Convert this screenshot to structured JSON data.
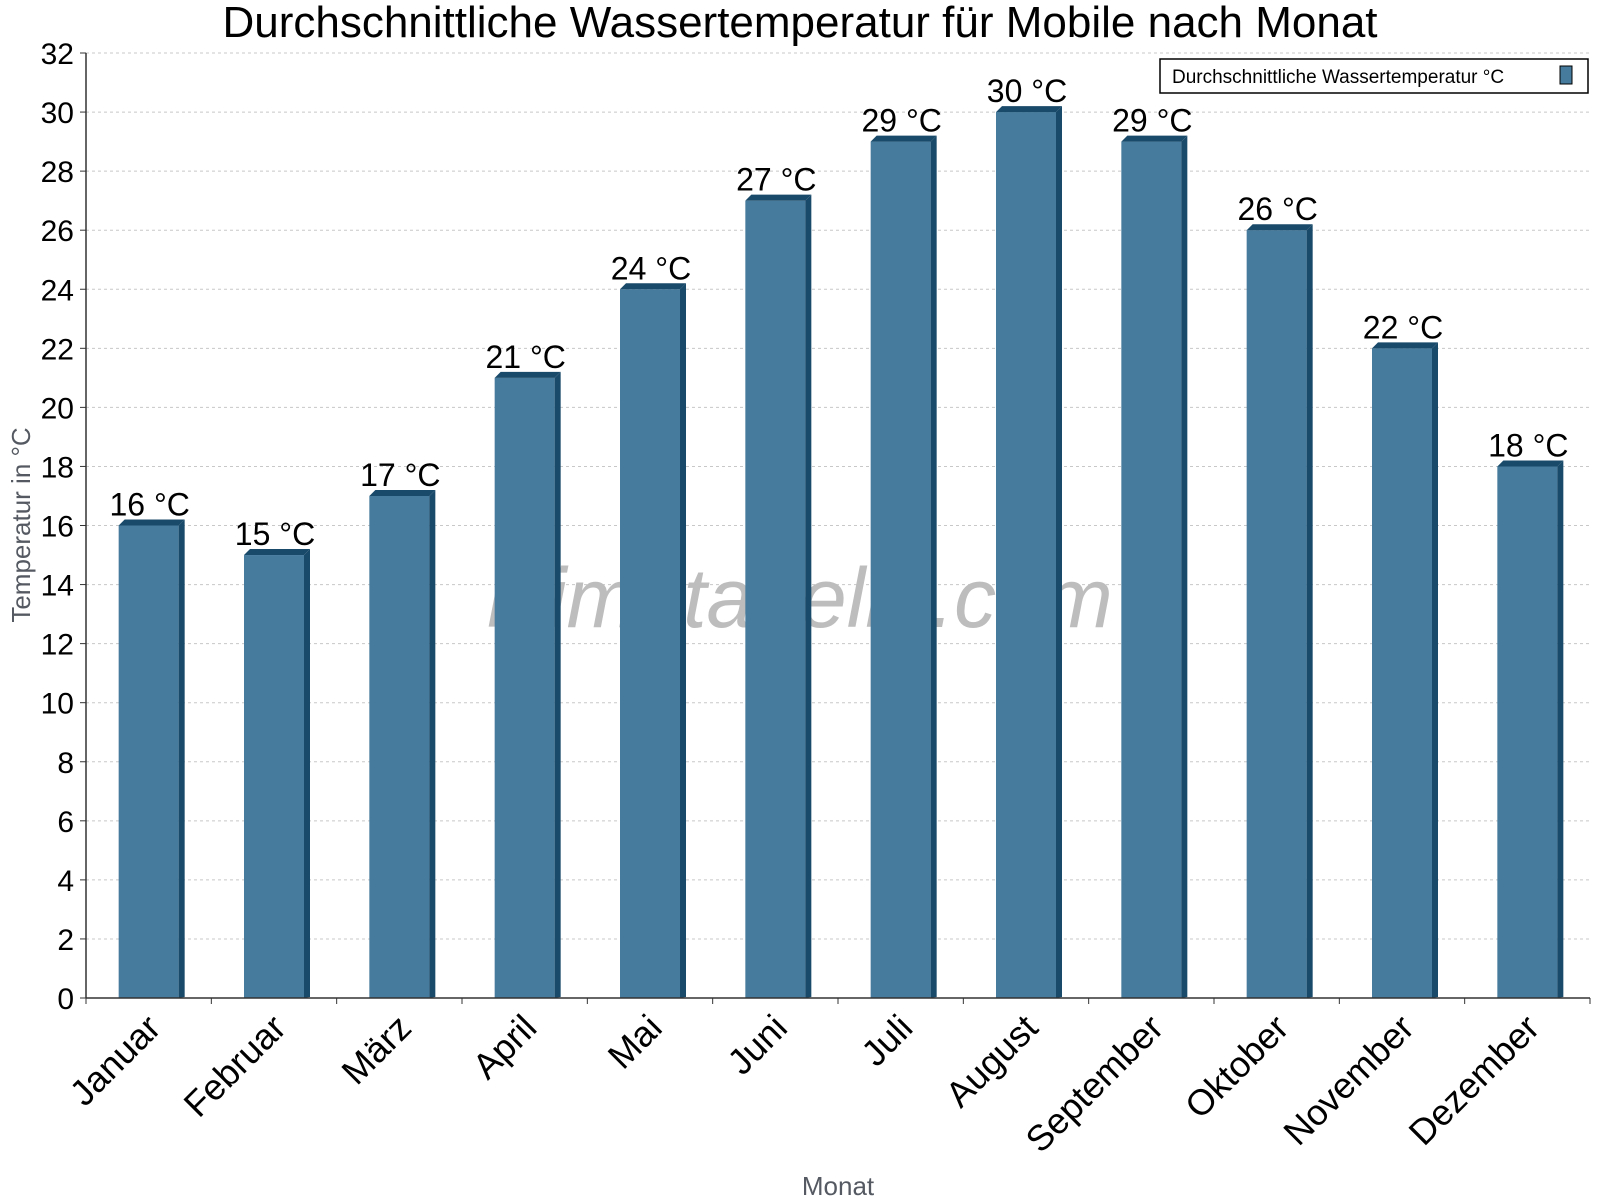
{
  "colors": {
    "bar_face": "#467b9d",
    "bar_side": "#1a4a6a",
    "grid": "#c8c8c8",
    "axis": "#333333"
  },
  "watermark": "klimatabelle.com",
  "chart_data": {
    "type": "bar",
    "title": "Durchschnittliche Wassertemperatur für Mobile nach Monat",
    "xlabel": "Monat",
    "ylabel": "Temperatur in °C",
    "ylim": [
      0,
      32
    ],
    "yticks": [
      0,
      2,
      4,
      6,
      8,
      10,
      12,
      14,
      16,
      18,
      20,
      22,
      24,
      26,
      28,
      30,
      32
    ],
    "grid": true,
    "legend_position": "top-right",
    "categories": [
      "Januar",
      "Februar",
      "März",
      "April",
      "Mai",
      "Juni",
      "Juli",
      "August",
      "September",
      "Oktober",
      "November",
      "Dezember"
    ],
    "series": [
      {
        "name": "Durchschnittliche Wassertemperatur °C",
        "values": [
          16,
          15,
          17,
          21,
          24,
          27,
          29,
          30,
          29,
          26,
          22,
          18
        ],
        "labels": [
          "16 °C",
          "15 °C",
          "17 °C",
          "21 °C",
          "24 °C",
          "27 °C",
          "29 °C",
          "30 °C",
          "29 °C",
          "26 °C",
          "22 °C",
          "18 °C"
        ]
      }
    ]
  }
}
